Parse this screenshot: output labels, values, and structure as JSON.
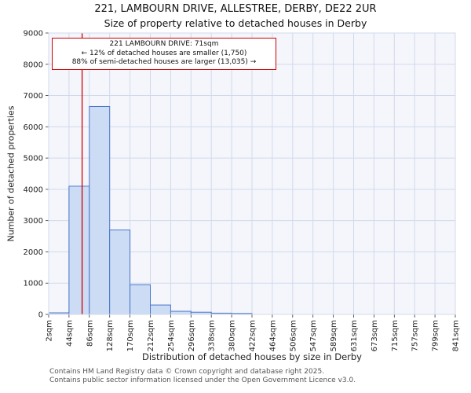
{
  "chart_data": {
    "type": "bar",
    "title": "221, LAMBOURN DRIVE, ALLESTREE, DERBY, DE22 2UR",
    "subtitle": "Size of property relative to detached houses in Derby",
    "xlabel": "Distribution of detached houses by size in Derby",
    "ylabel": "Number of detached properties",
    "categories": [
      "2sqm",
      "44sqm",
      "86sqm",
      "128sqm",
      "170sqm",
      "212sqm",
      "254sqm",
      "296sqm",
      "338sqm",
      "380sqm",
      "422sqm",
      "464sqm",
      "506sqm",
      "547sqm",
      "589sqm",
      "631sqm",
      "673sqm",
      "715sqm",
      "757sqm",
      "799sqm",
      "841sqm"
    ],
    "values": [
      50,
      4100,
      6650,
      2700,
      950,
      300,
      100,
      70,
      40,
      30,
      0,
      0,
      0,
      0,
      0,
      0,
      0,
      0,
      0,
      0
    ],
    "xlim": [
      2,
      841
    ],
    "ylim": [
      0,
      9000
    ],
    "ytick_step": 1000,
    "grid": true,
    "legend": "none",
    "marker": {
      "value_sqm": 71
    },
    "annotation": {
      "line1": "221 LAMBOURN DRIVE: 71sqm",
      "line2": "← 12% of detached houses are smaller (1,750)",
      "line3": "88% of semi-detached houses are larger (13,035) →"
    },
    "colors": {
      "bar_fill": "#ccdcf5",
      "bar_edge": "#4a76c9",
      "marker_line": "#cc0000",
      "annotation_border": "#cc0000",
      "grid_line": "#d2d9ea",
      "plot_bg": "#f4f6fc",
      "tick_text": "#222222"
    }
  },
  "footer": {
    "line1": "Contains HM Land Registry data © Crown copyright and database right 2025.",
    "line2": "Contains public sector information licensed under the Open Government Licence v3.0."
  }
}
